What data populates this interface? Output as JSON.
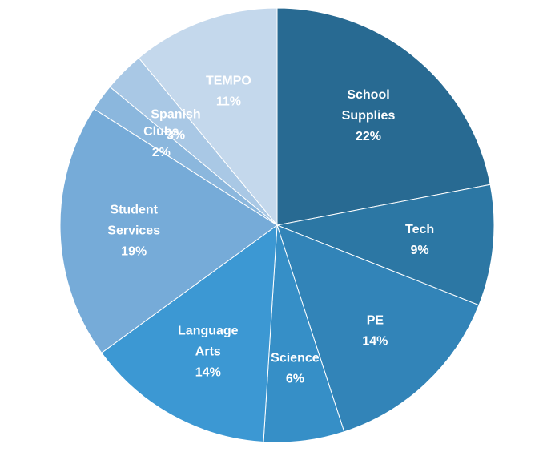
{
  "chart_data": {
    "type": "pie",
    "title": "",
    "slices": [
      {
        "lines": [
          "School",
          "Supplies"
        ],
        "percent_label": "22%",
        "value": 22,
        "color": "#286a92"
      },
      {
        "lines": [
          "Tech"
        ],
        "percent_label": "9%",
        "value": 9,
        "color": "#2c77a4"
      },
      {
        "lines": [
          "PE"
        ],
        "percent_label": "14%",
        "value": 14,
        "color": "#3284b8"
      },
      {
        "lines": [
          "Science"
        ],
        "percent_label": "6%",
        "value": 6,
        "color": "#368fc7"
      },
      {
        "lines": [
          "Language",
          "Arts"
        ],
        "percent_label": "14%",
        "value": 14,
        "color": "#3c98d3"
      },
      {
        "lines": [
          "Student",
          "Services"
        ],
        "percent_label": "19%",
        "value": 19,
        "color": "#76abd8"
      },
      {
        "lines": [
          "Clubs"
        ],
        "percent_label": "2%",
        "value": 2,
        "color": "#8bb7dd"
      },
      {
        "lines": [
          "Spanish"
        ],
        "percent_label": "3%",
        "value": 3,
        "color": "#a9c8e5"
      },
      {
        "lines": [
          "TEMPO"
        ],
        "percent_label": "11%",
        "value": 11,
        "color": "#c4d8ec"
      }
    ],
    "start_angle": "12 o'clock",
    "direction": "clockwise",
    "label_color": "#ffffff",
    "slice_border_color": "#ffffff"
  }
}
